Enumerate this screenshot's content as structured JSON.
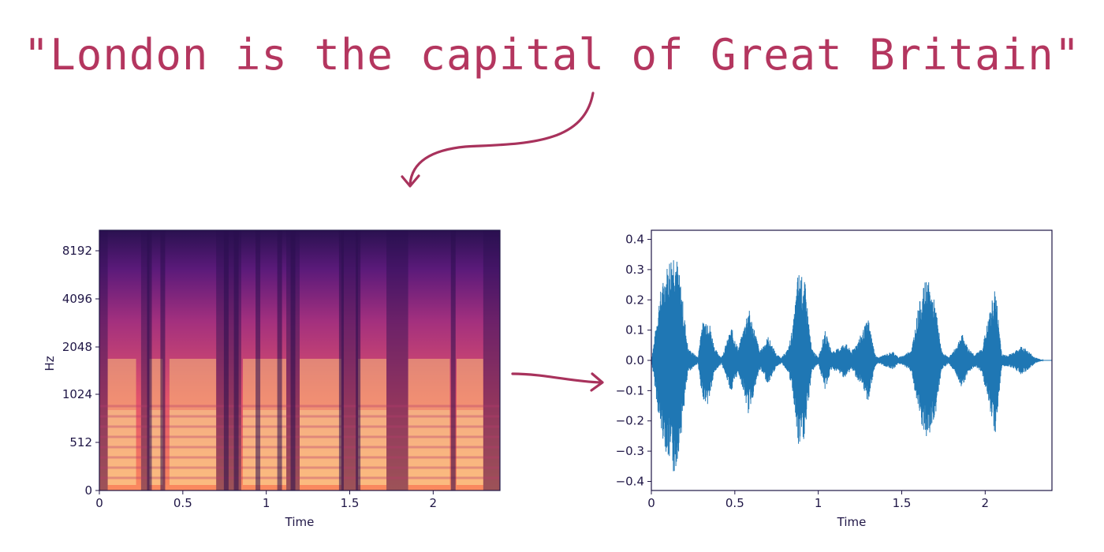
{
  "headline": "\"London is the capital of Great Britain\"",
  "colors": {
    "accent": "#b4365f",
    "axis": "#1f1646",
    "waveform": "#1f77b4"
  },
  "chart_data": [
    {
      "type": "heatmap",
      "title": "",
      "xlabel": "Time",
      "ylabel": "Hz",
      "x_ticks": [
        "0",
        "0.5",
        "1",
        "1.5",
        "2"
      ],
      "y_ticks": [
        "0",
        "512",
        "1024",
        "2048",
        "4096",
        "8192"
      ],
      "xlim": [
        0,
        2.4
      ],
      "yscale": "log-like",
      "colormap": "magma"
    },
    {
      "type": "line",
      "title": "",
      "xlabel": "Time",
      "ylabel": "",
      "x_ticks": [
        "0",
        "0.5",
        "1",
        "1.5",
        "2"
      ],
      "y_ticks": [
        "0.4",
        "0.3",
        "0.2",
        "0.1",
        "0.0",
        "−0.1",
        "−0.2",
        "−0.3",
        "−0.4"
      ],
      "xlim": [
        0,
        2.4
      ],
      "ylim": [
        -0.43,
        0.43
      ],
      "envelope": {
        "time": [
          0.0,
          0.02,
          0.05,
          0.1,
          0.14,
          0.18,
          0.22,
          0.28,
          0.3,
          0.34,
          0.38,
          0.42,
          0.45,
          0.48,
          0.52,
          0.55,
          0.58,
          0.62,
          0.65,
          0.7,
          0.75,
          0.78,
          0.82,
          0.85,
          0.88,
          0.92,
          0.96,
          1.0,
          1.04,
          1.08,
          1.12,
          1.16,
          1.2,
          1.25,
          1.3,
          1.34,
          1.36,
          1.4,
          1.45,
          1.48,
          1.52,
          1.56,
          1.6,
          1.65,
          1.7,
          1.74,
          1.78,
          1.82,
          1.86,
          1.9,
          1.94,
          1.98,
          2.02,
          2.06,
          2.1,
          2.14,
          2.18,
          2.22,
          2.26,
          2.3,
          2.35,
          2.4
        ],
        "amplitude": [
          0.0,
          0.08,
          0.22,
          0.33,
          0.39,
          0.24,
          0.04,
          0.01,
          0.12,
          0.15,
          0.04,
          0.01,
          0.06,
          0.11,
          0.04,
          0.1,
          0.18,
          0.1,
          0.03,
          0.08,
          0.02,
          0.01,
          0.04,
          0.12,
          0.3,
          0.26,
          0.04,
          0.01,
          0.1,
          0.03,
          0.04,
          0.06,
          0.03,
          0.08,
          0.14,
          0.02,
          0.01,
          0.02,
          0.03,
          0.01,
          0.02,
          0.04,
          0.18,
          0.28,
          0.19,
          0.03,
          0.01,
          0.04,
          0.09,
          0.04,
          0.02,
          0.04,
          0.14,
          0.25,
          0.02,
          0.02,
          0.03,
          0.05,
          0.03,
          0.01,
          0.0,
          0.0
        ]
      }
    }
  ]
}
